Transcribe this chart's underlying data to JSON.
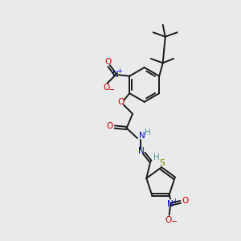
{
  "bg_color": "#e8eaeb",
  "line_color": "#1a1a1a",
  "bond_width": 1.4,
  "fig_size": [
    3.0,
    3.0
  ],
  "dpi": 100,
  "red": "#cc0000",
  "blue": "#0000cc",
  "teal": "#5a9090",
  "yellow_green": "#888800",
  "dark": "#1a1a1a",
  "xlim": [
    0,
    10
  ],
  "ylim": [
    0,
    10
  ]
}
